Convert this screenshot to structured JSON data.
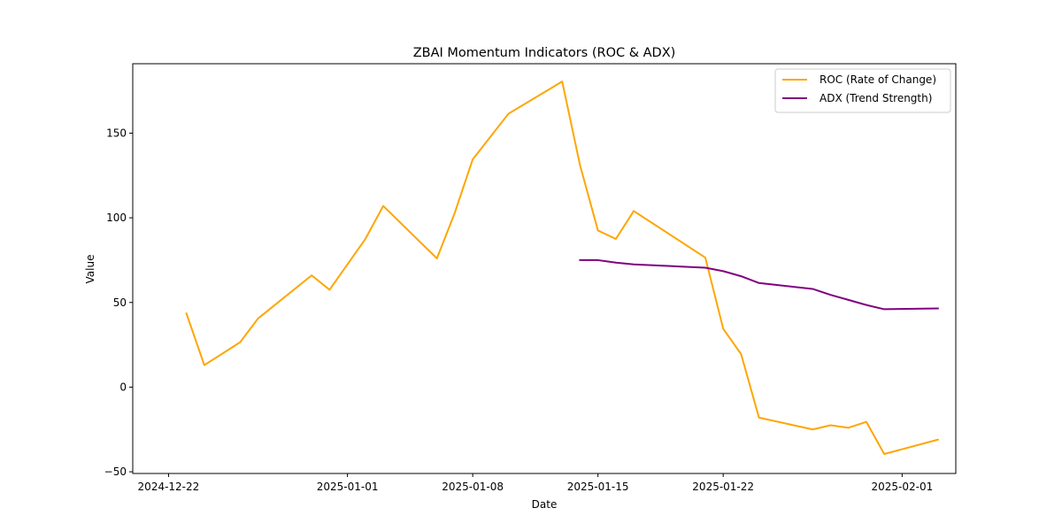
{
  "chart_data": {
    "type": "line",
    "title": "ZBAI Momentum Indicators (ROC & ADX)",
    "xlabel": "Date",
    "ylabel": "Value",
    "xlim": [
      "2024-12-20",
      "2025-02-04"
    ],
    "ylim": [
      -51,
      191
    ],
    "x_ticks": [
      "2024-12-22",
      "2025-01-01",
      "2025-01-08",
      "2025-01-15",
      "2025-01-22",
      "2025-02-01"
    ],
    "y_ticks": [
      -50,
      0,
      50,
      100,
      150
    ],
    "grid": false,
    "legend_position": "top-right",
    "series": [
      {
        "name": "ROC (Rate of Change)",
        "color": "#ffa500",
        "points": [
          [
            "2024-12-23",
            43.5
          ],
          [
            "2024-12-24",
            13
          ],
          [
            "2024-12-26",
            26.5
          ],
          [
            "2024-12-27",
            40.5
          ],
          [
            "2024-12-30",
            66
          ],
          [
            "2024-12-31",
            57.5
          ],
          [
            "2025-01-02",
            87.5
          ],
          [
            "2025-01-03",
            107
          ],
          [
            "2025-01-06",
            76
          ],
          [
            "2025-01-07",
            103
          ],
          [
            "2025-01-08",
            134.5
          ],
          [
            "2025-01-10",
            161.5
          ],
          [
            "2025-01-13",
            180.5
          ],
          [
            "2025-01-14",
            131
          ],
          [
            "2025-01-15",
            92.5
          ],
          [
            "2025-01-16",
            87.5
          ],
          [
            "2025-01-17",
            104
          ],
          [
            "2025-01-21",
            76.5
          ],
          [
            "2025-01-22",
            34.5
          ],
          [
            "2025-01-23",
            19.5
          ],
          [
            "2025-01-24",
            -18
          ],
          [
            "2025-01-27",
            -25
          ],
          [
            "2025-01-28",
            -22.5
          ],
          [
            "2025-01-29",
            -24
          ],
          [
            "2025-01-30",
            -20.5
          ],
          [
            "2025-01-31",
            -39.5
          ],
          [
            "2025-02-03",
            -31
          ]
        ]
      },
      {
        "name": "ADX (Trend Strength)",
        "color": "#800080",
        "points": [
          [
            "2025-01-14",
            75
          ],
          [
            "2025-01-15",
            75
          ],
          [
            "2025-01-16",
            73.5
          ],
          [
            "2025-01-17",
            72.5
          ],
          [
            "2025-01-21",
            70.5
          ],
          [
            "2025-01-22",
            68.5
          ],
          [
            "2025-01-23",
            65.5
          ],
          [
            "2025-01-24",
            61.5
          ],
          [
            "2025-01-27",
            58
          ],
          [
            "2025-01-28",
            54.5
          ],
          [
            "2025-01-29",
            51.5
          ],
          [
            "2025-01-30",
            48.5
          ],
          [
            "2025-01-31",
            46
          ],
          [
            "2025-02-03",
            46.5
          ]
        ]
      }
    ]
  }
}
